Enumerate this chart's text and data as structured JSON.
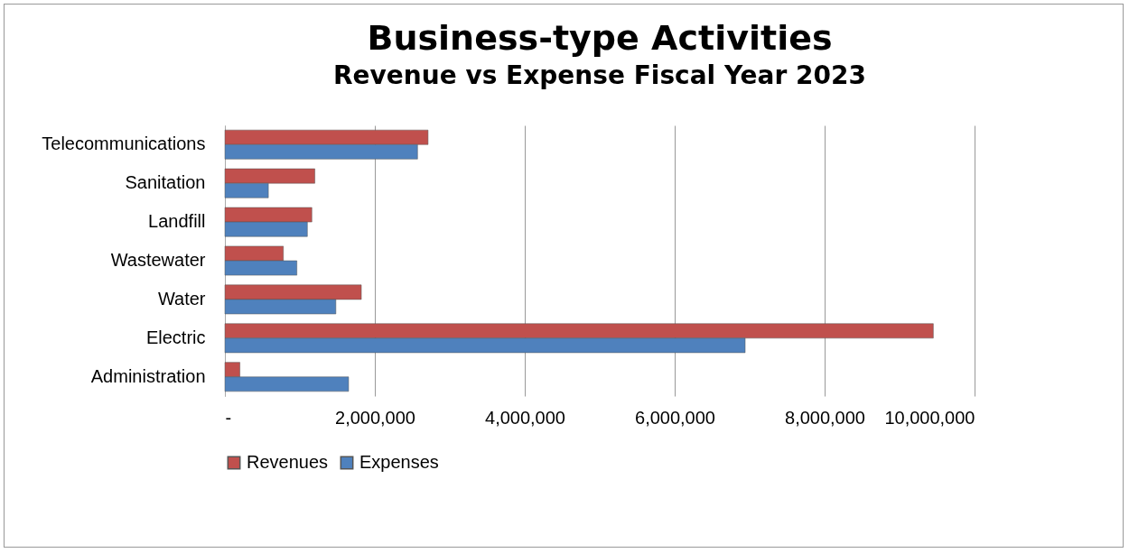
{
  "chart_data": {
    "type": "bar",
    "orientation": "horizontal",
    "title": "Business-type Activities",
    "subtitle": "Revenue vs Expense Fiscal Year 2023",
    "categories": [
      "Telecommunications",
      "Sanitation",
      "Landfill",
      "Wastewater",
      "Water",
      "Electric",
      "Administration"
    ],
    "series": [
      {
        "name": "Revenues",
        "color": "#c0504d",
        "values": [
          2710000,
          1200000,
          1160000,
          780000,
          1820000,
          9450000,
          200000
        ]
      },
      {
        "name": "Expenses",
        "color": "#4f81bd",
        "values": [
          2570000,
          580000,
          1100000,
          960000,
          1480000,
          6940000,
          1650000
        ]
      }
    ],
    "xlim": [
      0,
      10000000
    ],
    "xticks": [
      {
        "value": 0,
        "label": "-"
      },
      {
        "value": 2000000,
        "label": "2,000,000"
      },
      {
        "value": 4000000,
        "label": "4,000,000"
      },
      {
        "value": 6000000,
        "label": "6,000,000"
      },
      {
        "value": 8000000,
        "label": "8,000,000"
      },
      {
        "value": 10000000,
        "label": "10,000,000"
      }
    ],
    "grid": "x",
    "legend": "bottom"
  }
}
